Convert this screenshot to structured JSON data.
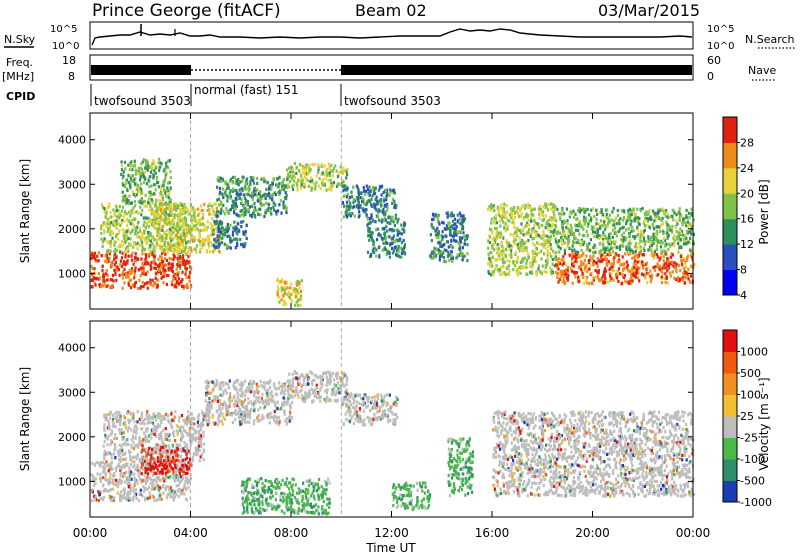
{
  "header": {
    "station": "Prince George (fitACF)",
    "beam": "Beam 02",
    "date": "03/Mar/2015"
  },
  "status_panels": {
    "nsky_label": "N.Sky",
    "nsearch_label": "N.Search",
    "freq_label_line1": "Freq.",
    "freq_label_line2": "[MHz]",
    "nave_label": "Nave",
    "cpid_label": "CPID",
    "noise_ticks_left": [
      "10^5",
      "10^0"
    ],
    "noise_ticks_right": [
      "10^5",
      "10^0"
    ],
    "freq_ticks_left": [
      "18",
      "8"
    ],
    "freq_ticks_right": [
      "60",
      "0"
    ],
    "cpid_modes": [
      {
        "label": "twofsound 3503",
        "start_hour": 0,
        "end_hour": 4
      },
      {
        "label": "normal (fast) 151",
        "start_hour": 4,
        "end_hour": 10
      },
      {
        "label": "twofsound 3503",
        "start_hour": 10,
        "end_hour": 24
      }
    ]
  },
  "chart_data": [
    {
      "type": "heatmap",
      "quantity": "Power",
      "ylabel": "Slant Range [km]",
      "xlabel": "Time UT",
      "xlim": [
        0,
        24
      ],
      "ylim": [
        200,
        4600
      ],
      "yticks": [
        "1000",
        "2000",
        "3000",
        "4000"
      ],
      "xticks": [
        "00:00",
        "04:00",
        "08:00",
        "12:00",
        "16:00",
        "20:00",
        "00:00"
      ],
      "colorbar": {
        "label": "Power [dB]",
        "ticks": [
          "28",
          "24",
          "20",
          "16",
          "12",
          "8",
          "4"
        ],
        "colors": [
          "#0000ee",
          "#2a4fbf",
          "#2f8f5a",
          "#7fc24a",
          "#e8d23a",
          "#f08a1a",
          "#e02010"
        ]
      },
      "regions": [
        {
          "x": [
            0.0,
            4.0
          ],
          "y": [
            700,
            1500
          ],
          "level": 0.95
        },
        {
          "x": [
            0.4,
            3.8
          ],
          "y": [
            1500,
            2600
          ],
          "level": 0.55
        },
        {
          "x": [
            1.2,
            3.2
          ],
          "y": [
            2600,
            3600
          ],
          "level": 0.45
        },
        {
          "x": [
            2.5,
            5.2
          ],
          "y": [
            1500,
            2600
          ],
          "level": 0.6
        },
        {
          "x": [
            5.0,
            7.8
          ],
          "y": [
            2300,
            3200
          ],
          "level": 0.35
        },
        {
          "x": [
            7.8,
            10.2
          ],
          "y": [
            2900,
            3500
          ],
          "level": 0.55
        },
        {
          "x": [
            10.0,
            12.2
          ],
          "y": [
            2300,
            3000
          ],
          "level": 0.3
        },
        {
          "x": [
            4.8,
            6.2
          ],
          "y": [
            1600,
            2200
          ],
          "level": 0.3
        },
        {
          "x": [
            7.4,
            8.4
          ],
          "y": [
            300,
            900
          ],
          "level": 0.7
        },
        {
          "x": [
            11.0,
            12.5
          ],
          "y": [
            1400,
            2300
          ],
          "level": 0.3
        },
        {
          "x": [
            13.5,
            15.0
          ],
          "y": [
            1300,
            2400
          ],
          "level": 0.3
        },
        {
          "x": [
            15.8,
            18.5
          ],
          "y": [
            1000,
            2600
          ],
          "level": 0.55
        },
        {
          "x": [
            18.5,
            24.0
          ],
          "y": [
            800,
            1500
          ],
          "level": 0.9
        },
        {
          "x": [
            18.5,
            24.0
          ],
          "y": [
            1500,
            2500
          ],
          "level": 0.45
        }
      ]
    },
    {
      "type": "heatmap",
      "quantity": "Velocity",
      "ylabel": "Slant Range [km]",
      "xlabel": "Time UT",
      "xlim": [
        0,
        24
      ],
      "ylim": [
        200,
        4600
      ],
      "yticks": [
        "1000",
        "2000",
        "3000",
        "4000"
      ],
      "xticks": [
        "00:00",
        "04:00",
        "08:00",
        "12:00",
        "16:00",
        "20:00",
        "00:00"
      ],
      "colorbar": {
        "label": "Velocity [m s⁻¹]",
        "ticks": [
          "1000",
          "500",
          "100",
          "25",
          "-25",
          "-100",
          "-500",
          "-1000"
        ],
        "colors": [
          "#1a3fb0",
          "#2f8f6a",
          "#4cb84c",
          "#bdbdbd",
          "#f0c030",
          "#f09020",
          "#ef5a10",
          "#e01010"
        ]
      },
      "regions": [
        {
          "x": [
            0.0,
            4.0
          ],
          "y": [
            600,
            1500
          ],
          "level": 0.45
        },
        {
          "x": [
            0.5,
            4.5
          ],
          "y": [
            1500,
            2600
          ],
          "level": 0.5
        },
        {
          "x": [
            2.0,
            4.0
          ],
          "y": [
            1200,
            1800
          ],
          "level": 0.95
        },
        {
          "x": [
            4.5,
            8.0
          ],
          "y": [
            2300,
            3300
          ],
          "level": 0.45
        },
        {
          "x": [
            7.8,
            10.2
          ],
          "y": [
            2800,
            3500
          ],
          "level": 0.45
        },
        {
          "x": [
            10.0,
            12.2
          ],
          "y": [
            2300,
            3000
          ],
          "level": 0.45
        },
        {
          "x": [
            6.0,
            9.5
          ],
          "y": [
            300,
            1100
          ],
          "level": 0.15
        },
        {
          "x": [
            12.0,
            13.5
          ],
          "y": [
            400,
            1000
          ],
          "level": 0.2
        },
        {
          "x": [
            14.2,
            15.2
          ],
          "y": [
            700,
            2000
          ],
          "level": 0.2
        },
        {
          "x": [
            16.0,
            24.0
          ],
          "y": [
            700,
            2600
          ],
          "level": 0.45
        }
      ]
    }
  ]
}
